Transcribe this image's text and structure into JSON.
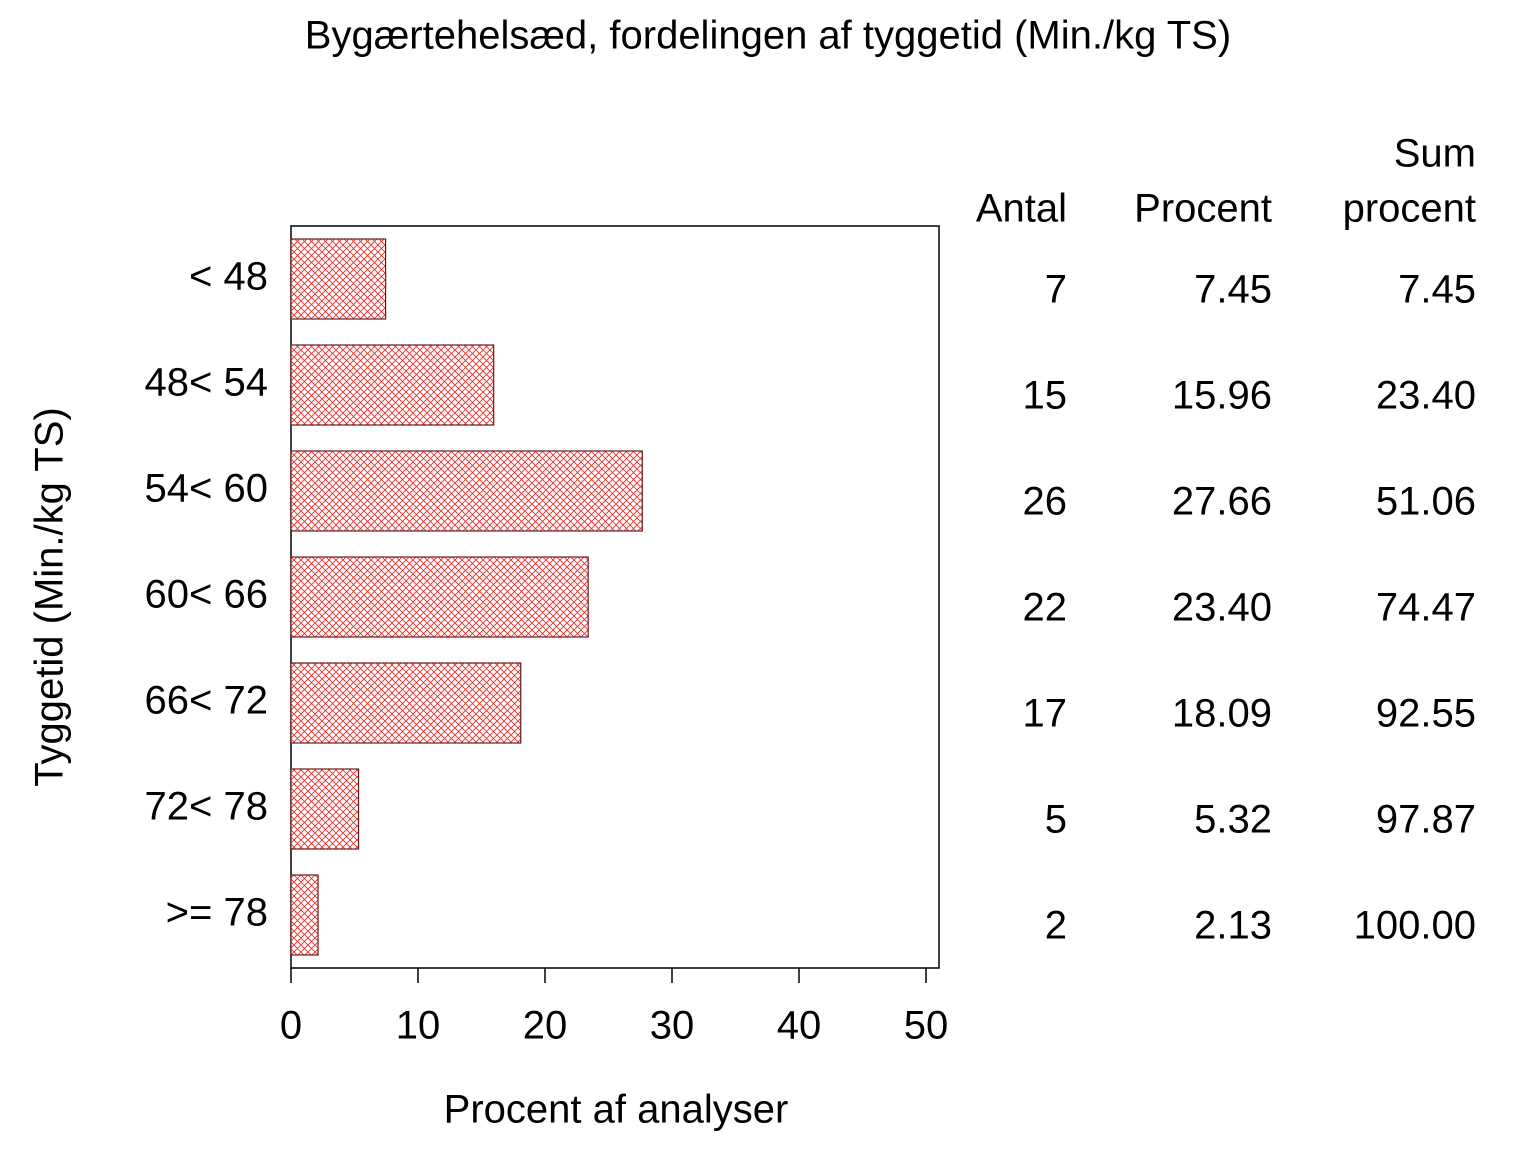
{
  "chart_data": {
    "type": "bar",
    "orientation": "horizontal",
    "title": "Bygærtehelsæd, fordelingen af tyggetid (Min./kg TS)",
    "xlabel": "Procent af analyser",
    "ylabel": "Tyggetid (Min./kg TS)",
    "categories": [
      "< 48",
      "48< 54",
      "54< 60",
      "60< 66",
      "66< 72",
      "72< 78",
      ">= 78"
    ],
    "values": [
      7.45,
      15.96,
      27.66,
      23.4,
      18.09,
      5.32,
      2.13
    ],
    "value_labels": [
      "7.45",
      "15.96",
      "27.66",
      "23.40",
      "18.09",
      "5.32",
      "2.13"
    ],
    "color": "#e8302a",
    "xlim": [
      0,
      50
    ],
    "xticks": [
      0,
      10,
      20,
      30,
      40,
      50
    ],
    "table": {
      "header_lines": [
        [
          "Antal"
        ],
        [
          "Procent"
        ],
        [
          "Sum",
          "procent"
        ]
      ],
      "counts": [
        7,
        15,
        26,
        22,
        17,
        5,
        2
      ],
      "cumulative_labels": [
        "7.45",
        "23.40",
        "51.06",
        "74.47",
        "92.55",
        "97.87",
        "100.00"
      ]
    }
  }
}
